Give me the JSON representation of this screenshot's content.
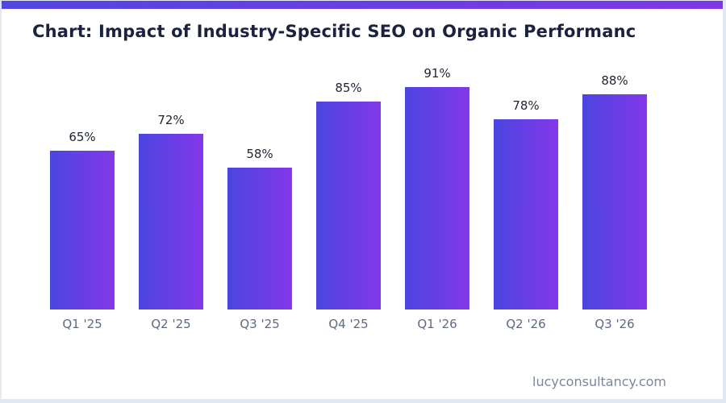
{
  "page": {
    "title": "Chart: Impact of Industry-Specific SEO on Organic Performanc",
    "footer": "lucyconsultancy.com",
    "accent_gradient": [
      "#5346e1",
      "#7e36e8"
    ]
  },
  "chart_data": {
    "type": "bar",
    "title": "Chart: Impact of Industry-Specific SEO on Organic Performanc",
    "categories": [
      "Q1 '25",
      "Q2 '25",
      "Q3 '25",
      "Q4 '25",
      "Q1 '26",
      "Q2 '26",
      "Q3 '26"
    ],
    "values": [
      65,
      72,
      58,
      85,
      91,
      78,
      88
    ],
    "value_labels": [
      "65%",
      "72%",
      "58%",
      "85%",
      "91%",
      "78%",
      "88%"
    ],
    "value_suffix": "%",
    "xlabel": "",
    "ylabel": "",
    "ylim": [
      0,
      100
    ],
    "grid": false,
    "legend": "none",
    "bar_gradient": [
      "#4b45e0",
      "#8338ea"
    ],
    "value_label_color": "#1e2433",
    "category_label_color": "#5d6b85",
    "title_color": "#1b2240",
    "footer_color": "#7d8799"
  }
}
